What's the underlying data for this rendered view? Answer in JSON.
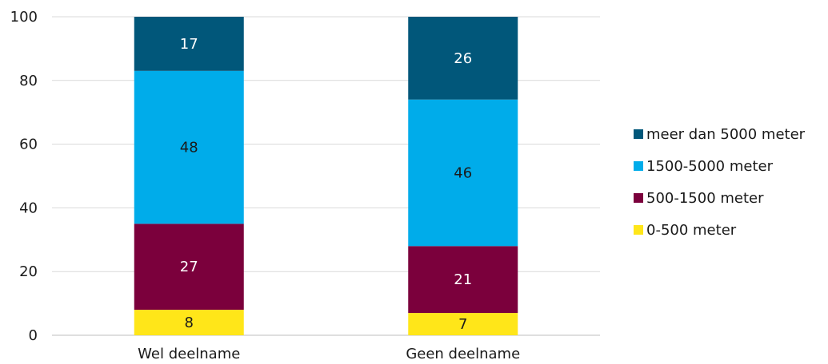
{
  "chart_data": {
    "type": "bar",
    "stacked": true,
    "categories": [
      "Wel deelname",
      "Geen deelname"
    ],
    "series": [
      {
        "name": "0-500 meter",
        "values": [
          8,
          7
        ],
        "color": "#ffe619",
        "label_color": "#1a1a1a"
      },
      {
        "name": "500-1500 meter",
        "values": [
          27,
          21
        ],
        "color": "#7b003c",
        "label_color": "#ffffff"
      },
      {
        "name": "1500-5000 meter",
        "values": [
          48,
          46
        ],
        "color": "#00acea",
        "label_color": "#1a1a1a"
      },
      {
        "name": "meer dan 5000 meter",
        "values": [
          17,
          26
        ],
        "color": "#01577a",
        "label_color": "#ffffff"
      }
    ],
    "ylim": [
      0,
      100
    ],
    "yticks": [
      0,
      20,
      40,
      60,
      80,
      100
    ],
    "grid": true,
    "legend_position": "right",
    "legend_order": [
      "meer dan 5000 meter",
      "1500-5000 meter",
      "500-1500 meter",
      "0-500 meter"
    ]
  }
}
